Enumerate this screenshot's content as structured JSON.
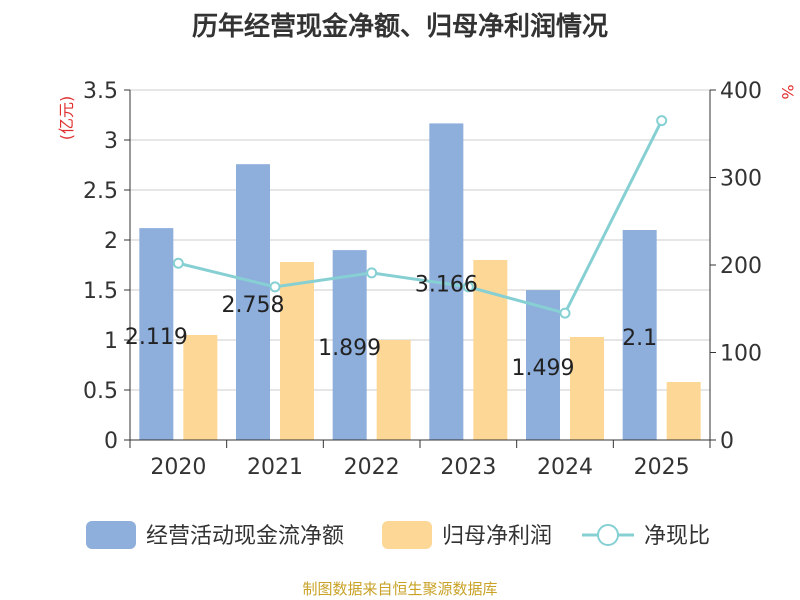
{
  "title": "历年经营现金净额、归母净利润情况",
  "source": "制图数据来自恒生聚源数据库",
  "chart_data": {
    "type": "bar",
    "categories": [
      "2020",
      "2021",
      "2022",
      "2023",
      "2024",
      "2025"
    ],
    "y_left": {
      "label": "(亿元)",
      "ylim": [
        0,
        3.5
      ],
      "ticks": [
        "0",
        "0.5",
        "1",
        "1.5",
        "2",
        "2.5",
        "3",
        "3.5"
      ]
    },
    "y_right": {
      "label": "%",
      "ylim": [
        0,
        400
      ],
      "ticks": [
        "0",
        "100",
        "200",
        "300",
        "400"
      ]
    },
    "grid": true,
    "legend_position": "bottom",
    "series": [
      {
        "name": "经营活动现金流净额",
        "type": "bar",
        "axis": "left",
        "color": "#8eaedc",
        "values": [
          2.119,
          2.758,
          1.899,
          3.166,
          1.499,
          2.1
        ],
        "labels": [
          "2.119",
          "2.758",
          "1.899",
          "3.166",
          "1.499",
          "2.1"
        ]
      },
      {
        "name": "归母净利润",
        "type": "bar",
        "axis": "left",
        "color": "#fdd796",
        "values": [
          1.05,
          1.78,
          1.0,
          1.8,
          1.03,
          0.58
        ]
      },
      {
        "name": "净现比",
        "type": "line",
        "axis": "right",
        "color": "#86d0d4",
        "values": [
          202,
          175,
          191,
          175,
          145,
          365
        ]
      }
    ]
  }
}
